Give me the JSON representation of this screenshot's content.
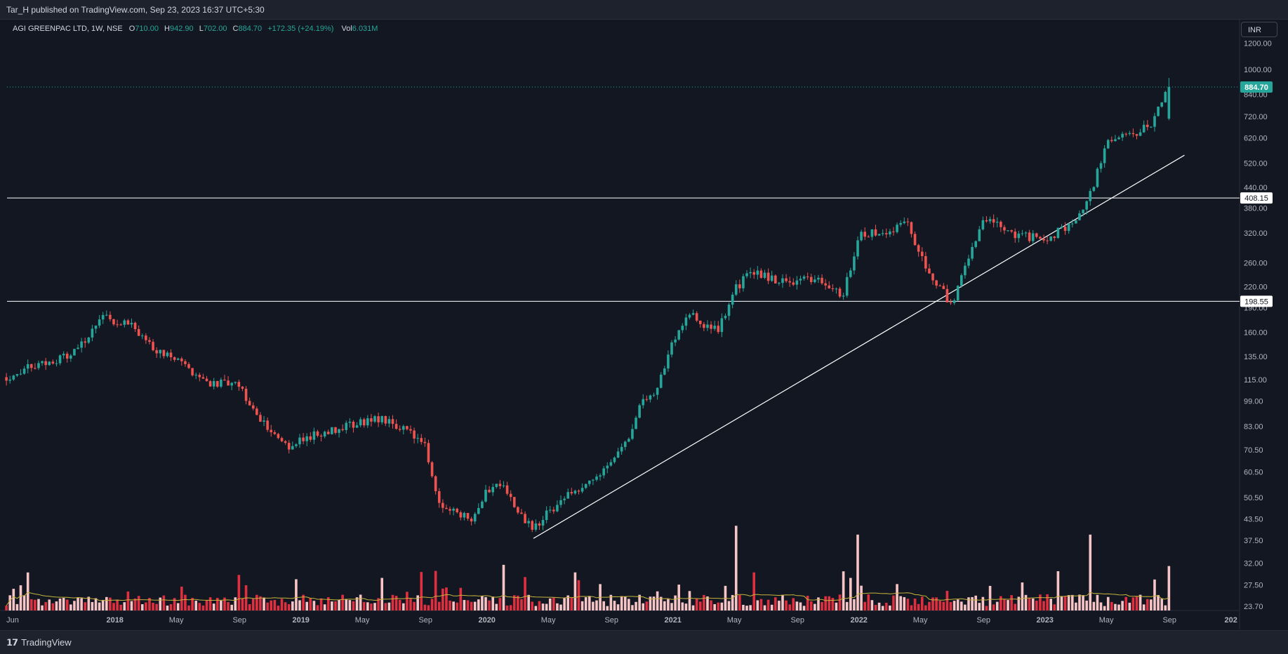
{
  "header": {
    "published": "Tar_H published on TradingView.com, Sep 23, 2023 16:37 UTC+5:30"
  },
  "legend": {
    "symbol": "AGI GREENPAC LTD, 1W, NSE",
    "open_label": "O",
    "open": "710.00",
    "high_label": "H",
    "high": "942.90",
    "low_label": "L",
    "low": "702.00",
    "close_label": "C",
    "close": "884.70",
    "change": "+172.35 (+24.19%)",
    "vol_label": "Vol",
    "vol": "6.031M"
  },
  "currency_button": "INR",
  "footer": {
    "brand": "TradingView",
    "logo": "tv-logo-icon"
  },
  "colors": {
    "bg": "#131722",
    "up": "#26a69a",
    "down": "#ef5350",
    "vol_up": "#f7c5c5",
    "vol_down": "#e0303f",
    "vol_ma": "#c6b53b",
    "hline": "#ffffff",
    "trend": "#ffffff",
    "last_price": "#26a69a"
  },
  "chart_data": {
    "type": "candlestick",
    "interval": "1W",
    "scale": "log",
    "x_ticks": [
      "Jun",
      "2018",
      "May",
      "Sep",
      "2019",
      "May",
      "Sep",
      "2020",
      "May",
      "Sep",
      "2021",
      "May",
      "Sep",
      "2022",
      "May",
      "Sep",
      "2023",
      "May",
      "Sep",
      "202"
    ],
    "y_ticks": [
      "1200.00",
      "1000.00",
      "840.00",
      "720.00",
      "620.00",
      "520.00",
      "440.00",
      "380.00",
      "320.00",
      "260.00",
      "220.00",
      "190.00",
      "160.00",
      "135.00",
      "115.00",
      "99.00",
      "83.00",
      "70.50",
      "60.50",
      "50.50",
      "43.50",
      "37.50",
      "32.00",
      "27.50",
      "23.70"
    ],
    "price_markers": [
      {
        "label": "884.70",
        "value": 884.7,
        "kind": "last-price"
      },
      {
        "label": "408.15",
        "value": 408.15,
        "kind": "horizontal-line"
      },
      {
        "label": "198.55",
        "value": 198.55,
        "kind": "horizontal-line"
      }
    ],
    "trendline": [
      {
        "date": "2020-04",
        "value": 38
      },
      {
        "date": "2023-10",
        "value": 550
      }
    ],
    "series": [
      {
        "values": [
          [
            "2017-06",
            117
          ],
          [
            "2017-08",
            128
          ],
          [
            "2017-10",
            135
          ],
          [
            "2017-11",
            150
          ],
          [
            "2017-12",
            178
          ],
          [
            "2018-02",
            170
          ],
          [
            "2018-03",
            148
          ],
          [
            "2018-05",
            131
          ],
          [
            "2018-07",
            113
          ],
          [
            "2018-09",
            110
          ],
          [
            "2018-10",
            92
          ],
          [
            "2018-12",
            72
          ],
          [
            "2019-02",
            79
          ],
          [
            "2019-04",
            83
          ],
          [
            "2019-06",
            88
          ],
          [
            "2019-08",
            80
          ],
          [
            "2019-09",
            72
          ],
          [
            "2019-10",
            47
          ],
          [
            "2019-12",
            44
          ],
          [
            "2020-01",
            53
          ],
          [
            "2020-02",
            57
          ],
          [
            "2020-03",
            45
          ],
          [
            "2020-04",
            41
          ],
          [
            "2020-06",
            51
          ],
          [
            "2020-08",
            58
          ],
          [
            "2020-10",
            75
          ],
          [
            "2020-11",
            98
          ],
          [
            "2020-12",
            109
          ],
          [
            "2021-01",
            150
          ],
          [
            "2021-02",
            185
          ],
          [
            "2021-03",
            165
          ],
          [
            "2021-04",
            165
          ],
          [
            "2021-05",
            215
          ],
          [
            "2021-06",
            245
          ],
          [
            "2021-08",
            228
          ],
          [
            "2021-10",
            232
          ],
          [
            "2021-12",
            208
          ],
          [
            "2022-01",
            318
          ],
          [
            "2022-03",
            320
          ],
          [
            "2022-04",
            355
          ],
          [
            "2022-05",
            270
          ],
          [
            "2022-07",
            192
          ],
          [
            "2022-08",
            262
          ],
          [
            "2022-09",
            355
          ],
          [
            "2022-11",
            318
          ],
          [
            "2023-01",
            305
          ],
          [
            "2023-03",
            350
          ],
          [
            "2023-04",
            425
          ],
          [
            "2023-05",
            605
          ],
          [
            "2023-07",
            640
          ],
          [
            "2023-08",
            700
          ],
          [
            "2023-09",
            884.7
          ]
        ]
      }
    ],
    "volume": {
      "ma_label": "Vol MA",
      "spikes": [
        {
          "date": "2020-02",
          "value": 6.2
        },
        {
          "date": "2021-05",
          "value": 11.5
        },
        {
          "date": "2022-01",
          "value": 10.3
        },
        {
          "date": "2023-04",
          "value": 10.3
        },
        {
          "date": "2023-09",
          "value": 6.031
        }
      ]
    }
  }
}
